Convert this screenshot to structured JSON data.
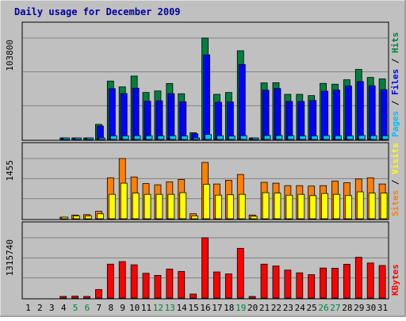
{
  "chart_data": {
    "type": "bar",
    "title": "Daily usage for December 2009",
    "categories": [
      "1",
      "2",
      "3",
      "4",
      "5",
      "6",
      "7",
      "8",
      "9",
      "10",
      "11",
      "12",
      "13",
      "14",
      "15",
      "16",
      "17",
      "18",
      "19",
      "20",
      "21",
      "22",
      "23",
      "24",
      "25",
      "26",
      "27",
      "28",
      "29",
      "30",
      "31"
    ],
    "weekend_days": [
      "5",
      "6",
      "12",
      "13",
      "19",
      "26",
      "27"
    ],
    "panels": [
      {
        "id": "hits",
        "max_label": "103800",
        "ymax": 103800,
        "legend": [
          {
            "text": "Pages",
            "color": "#00c0ff"
          },
          {
            "text": " / ",
            "color": "#000000"
          },
          {
            "text": "Files",
            "color": "#0000ff"
          },
          {
            "text": " / ",
            "color": "#000000"
          },
          {
            "text": "Hits",
            "color": "#008040"
          }
        ],
        "series": [
          {
            "name": "Hits",
            "color": "#008040",
            "values": [
              0,
              0,
              0,
              900,
              1500,
              1300,
              15500,
              59800,
              53800,
              64900,
              48100,
              49700,
              57300,
              46800,
              6900,
              103800,
              46200,
              48100,
              90800,
              1100,
              57900,
              58100,
              46200,
              46200,
              44900,
              57400,
              56600,
              61100,
              71700,
              63500,
              62000
            ]
          },
          {
            "name": "Files",
            "color": "#0000ff",
            "values": [
              0,
              0,
              0,
              600,
              1100,
              900,
              13800,
              52000,
              47000,
              52500,
              39100,
              39600,
              46900,
              38600,
              5800,
              86600,
              38100,
              38400,
              76800,
              800,
              50400,
              52100,
              38900,
              38900,
              39900,
              49400,
              50500,
              54800,
              59300,
              54900,
              51000
            ]
          },
          {
            "name": "Pages",
            "color": "#00c0ff",
            "values": [
              0,
              0,
              0,
              300,
              400,
              400,
              1200,
              3900,
              3800,
              4000,
              3900,
              3800,
              3900,
              3700,
              1200,
              5100,
              3900,
              3600,
              4000,
              300,
              4100,
              4100,
              3900,
              3800,
              3700,
              4000,
              3900,
              3800,
              4200,
              4000,
              3900
            ]
          }
        ]
      },
      {
        "id": "visits",
        "max_label": "1455",
        "ymax": 1455,
        "legend": [
          {
            "text": "Sites",
            "color": "#ff8000"
          },
          {
            "text": " / ",
            "color": "#000000"
          },
          {
            "text": "Visits",
            "color": "#ffff00"
          }
        ],
        "series": [
          {
            "name": "Visits",
            "color": "#ff8000",
            "values": [
              0,
              0,
              0,
              20,
              90,
              100,
              180,
              990,
              1455,
              1010,
              850,
              820,
              890,
              950,
              120,
              1360,
              840,
              930,
              1070,
              90,
              880,
              860,
              800,
              800,
              790,
              800,
              910,
              870,
              960,
              990,
              840
            ]
          },
          {
            "name": "Sites",
            "color": "#ffff00",
            "values": [
              0,
              0,
              0,
              15,
              70,
              70,
              120,
              590,
              860,
              620,
              590,
              590,
              590,
              630,
              70,
              830,
              570,
              580,
              590,
              60,
              630,
              620,
              570,
              590,
              560,
              610,
              590,
              560,
              650,
              620,
              620
            ]
          }
        ]
      },
      {
        "id": "kbytes",
        "max_label": "1315740",
        "ymax": 1315740,
        "legend": [
          {
            "text": "KBytes",
            "color": "#ff0000"
          }
        ],
        "series": [
          {
            "name": "KBytes",
            "color": "#ff0000",
            "values": [
              0,
              0,
              0,
              20000,
              40000,
              30000,
              185000,
              740000,
              795000,
              725000,
              540000,
              495000,
              632000,
              580000,
              87000,
              1315740,
              570000,
              525000,
              1085000,
              20000,
              740000,
              700000,
              610000,
              550000,
              510000,
              655000,
              650000,
              738000,
              890000,
              765000,
              710000
            ]
          }
        ]
      }
    ]
  }
}
